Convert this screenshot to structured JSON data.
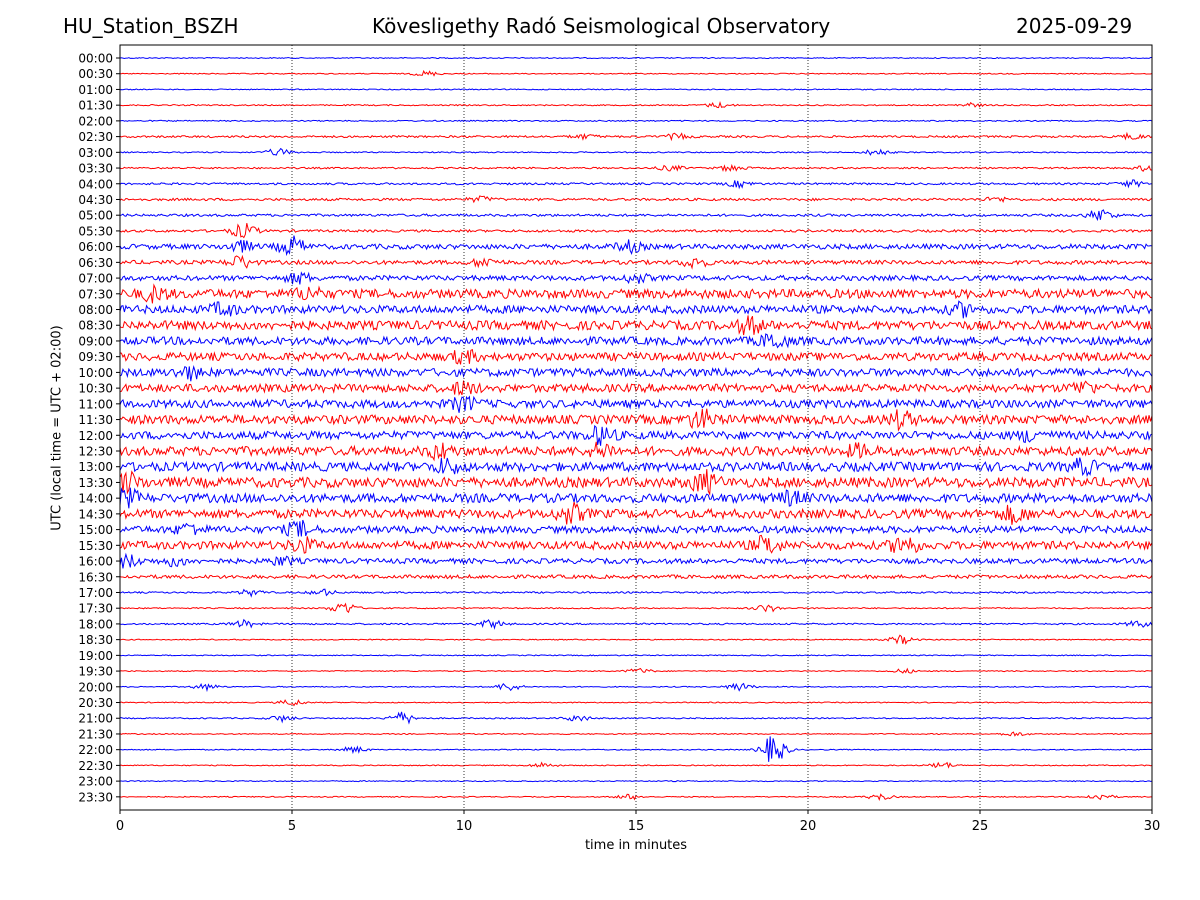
{
  "header": {
    "station": "HU_Station_BSZH",
    "observatory": "Kövesligethy Radó Seismological Observatory",
    "date": "2025-09-29"
  },
  "chart_data": {
    "type": "line",
    "title": "Kövesligethy Radó Seismological Observatory",
    "xlabel": "time in minutes",
    "ylabel": "UTC (local time = UTC + 02:00)",
    "xlim": [
      0,
      30
    ],
    "x_ticks": [
      "0",
      "5",
      "10",
      "15",
      "20",
      "25",
      "30"
    ],
    "x_tick_values": [
      0,
      5,
      10,
      15,
      20,
      25,
      30
    ],
    "grid": "vertical dotted at x ticks",
    "colors": {
      "even": "#0000ff",
      "odd": "#ff0000"
    },
    "rows": [
      {
        "label": "00:00",
        "amp": 0.5,
        "events": []
      },
      {
        "label": "00:30",
        "amp": 0.5,
        "events": [
          [
            8.9,
            2.5
          ]
        ]
      },
      {
        "label": "01:00",
        "amp": 0.5,
        "events": []
      },
      {
        "label": "01:30",
        "amp": 0.6,
        "events": [
          [
            17.4,
            2.5
          ],
          [
            24.7,
            2.0
          ]
        ]
      },
      {
        "label": "02:00",
        "amp": 0.6,
        "events": []
      },
      {
        "label": "02:30",
        "amp": 1.0,
        "events": [
          [
            13.5,
            2.0
          ],
          [
            16.2,
            2.5
          ],
          [
            29.4,
            2.5
          ]
        ]
      },
      {
        "label": "03:00",
        "amp": 0.6,
        "events": [
          [
            4.6,
            3.5
          ],
          [
            22.0,
            3.0
          ]
        ]
      },
      {
        "label": "03:30",
        "amp": 0.8,
        "events": [
          [
            16.0,
            2.5
          ],
          [
            17.8,
            3.0
          ],
          [
            29.9,
            3.0
          ]
        ]
      },
      {
        "label": "04:00",
        "amp": 1.0,
        "events": [
          [
            18.0,
            3.0
          ],
          [
            29.4,
            3.0
          ]
        ]
      },
      {
        "label": "04:30",
        "amp": 1.2,
        "events": [
          [
            10.5,
            2.5
          ],
          [
            25.5,
            2.0
          ]
        ]
      },
      {
        "label": "05:00",
        "amp": 1.2,
        "events": [
          [
            28.5,
            6.0
          ]
        ]
      },
      {
        "label": "05:30",
        "amp": 1.2,
        "events": [
          [
            3.6,
            7.0
          ]
        ]
      },
      {
        "label": "06:00",
        "amp": 2.5,
        "events": [
          [
            5.0,
            9.0
          ],
          [
            3.5,
            5.0
          ],
          [
            14.8,
            5.0
          ]
        ]
      },
      {
        "label": "06:30",
        "amp": 2.0,
        "events": [
          [
            3.5,
            6.0
          ],
          [
            10.6,
            4.0
          ],
          [
            16.7,
            5.0
          ]
        ]
      },
      {
        "label": "07:00",
        "amp": 2.5,
        "events": [
          [
            5.2,
            5.0
          ],
          [
            15.0,
            4.0
          ]
        ]
      },
      {
        "label": "07:30",
        "amp": 4.5,
        "events": [
          [
            1.0,
            6.0
          ],
          [
            5.5,
            5.0
          ]
        ]
      },
      {
        "label": "08:00",
        "amp": 4.0,
        "events": [
          [
            3.0,
            5.0
          ],
          [
            24.5,
            5.0
          ]
        ]
      },
      {
        "label": "08:30",
        "amp": 4.5,
        "events": [
          [
            18.3,
            7.0
          ]
        ]
      },
      {
        "label": "09:00",
        "amp": 4.0,
        "events": [
          [
            19.0,
            7.0
          ]
        ]
      },
      {
        "label": "09:30",
        "amp": 4.0,
        "events": [
          [
            10.0,
            5.0
          ]
        ]
      },
      {
        "label": "10:00",
        "amp": 4.0,
        "events": [
          [
            2.0,
            5.0
          ]
        ]
      },
      {
        "label": "10:30",
        "amp": 4.0,
        "events": [
          [
            10.0,
            5.0
          ],
          [
            28.0,
            5.0
          ]
        ]
      },
      {
        "label": "11:00",
        "amp": 4.0,
        "events": [
          [
            10.0,
            6.0
          ]
        ]
      },
      {
        "label": "11:30",
        "amp": 4.5,
        "events": [
          [
            16.9,
            8.0
          ],
          [
            22.7,
            7.0
          ]
        ]
      },
      {
        "label": "12:00",
        "amp": 4.0,
        "events": [
          [
            14.0,
            8.0
          ],
          [
            26.5,
            5.0
          ]
        ]
      },
      {
        "label": "12:30",
        "amp": 4.5,
        "events": [
          [
            9.3,
            6.0
          ],
          [
            14.0,
            6.0
          ],
          [
            21.5,
            5.0
          ]
        ]
      },
      {
        "label": "13:00",
        "amp": 4.5,
        "events": [
          [
            9.5,
            6.0
          ],
          [
            28.0,
            6.0
          ]
        ]
      },
      {
        "label": "13:30",
        "amp": 5.0,
        "events": [
          [
            0.2,
            8.0
          ],
          [
            17.0,
            9.0
          ]
        ]
      },
      {
        "label": "14:00",
        "amp": 4.5,
        "events": [
          [
            0.2,
            7.0
          ],
          [
            19.5,
            5.0
          ]
        ]
      },
      {
        "label": "14:30",
        "amp": 4.5,
        "events": [
          [
            13.1,
            8.0
          ],
          [
            26.0,
            7.0
          ]
        ]
      },
      {
        "label": "15:00",
        "amp": 3.5,
        "events": [
          [
            2.0,
            5.0
          ],
          [
            5.2,
            7.0
          ]
        ]
      },
      {
        "label": "15:30",
        "amp": 4.0,
        "events": [
          [
            5.3,
            6.0
          ],
          [
            18.8,
            8.0
          ],
          [
            22.8,
            9.0
          ]
        ]
      },
      {
        "label": "16:00",
        "amp": 2.5,
        "events": [
          [
            0.2,
            6.0
          ],
          [
            1.6,
            4.0
          ],
          [
            4.7,
            3.5
          ]
        ]
      },
      {
        "label": "16:30",
        "amp": 1.8,
        "events": []
      },
      {
        "label": "17:00",
        "amp": 0.8,
        "events": [
          [
            3.8,
            3.0
          ],
          [
            5.9,
            3.0
          ]
        ]
      },
      {
        "label": "17:30",
        "amp": 0.6,
        "events": [
          [
            6.5,
            6.0
          ],
          [
            18.8,
            3.5
          ]
        ]
      },
      {
        "label": "18:00",
        "amp": 0.8,
        "events": [
          [
            3.6,
            3.5
          ],
          [
            10.8,
            4.0
          ],
          [
            29.6,
            3.0
          ]
        ]
      },
      {
        "label": "18:30",
        "amp": 0.5,
        "events": [
          [
            22.7,
            4.0
          ]
        ]
      },
      {
        "label": "19:00",
        "amp": 0.5,
        "events": []
      },
      {
        "label": "19:30",
        "amp": 0.5,
        "events": [
          [
            15.1,
            2.5
          ],
          [
            22.8,
            2.0
          ]
        ]
      },
      {
        "label": "20:00",
        "amp": 0.5,
        "events": [
          [
            2.5,
            3.0
          ],
          [
            11.3,
            4.0
          ],
          [
            18.0,
            4.0
          ]
        ]
      },
      {
        "label": "20:30",
        "amp": 0.5,
        "events": [
          [
            5.0,
            3.0
          ]
        ]
      },
      {
        "label": "21:00",
        "amp": 0.6,
        "events": [
          [
            8.2,
            6.0
          ],
          [
            4.7,
            3.0
          ],
          [
            13.3,
            3.0
          ]
        ]
      },
      {
        "label": "21:30",
        "amp": 0.5,
        "events": [
          [
            26.0,
            2.0
          ]
        ]
      },
      {
        "label": "22:00",
        "amp": 0.5,
        "events": [
          [
            19.0,
            14.0
          ],
          [
            6.8,
            3.0
          ]
        ]
      },
      {
        "label": "22:30",
        "amp": 0.5,
        "events": [
          [
            12.3,
            2.5
          ],
          [
            23.9,
            3.0
          ]
        ]
      },
      {
        "label": "23:00",
        "amp": 0.5,
        "events": []
      },
      {
        "label": "23:30",
        "amp": 0.5,
        "events": [
          [
            14.8,
            2.5
          ],
          [
            22.1,
            3.0
          ],
          [
            28.5,
            3.0
          ]
        ]
      }
    ]
  }
}
